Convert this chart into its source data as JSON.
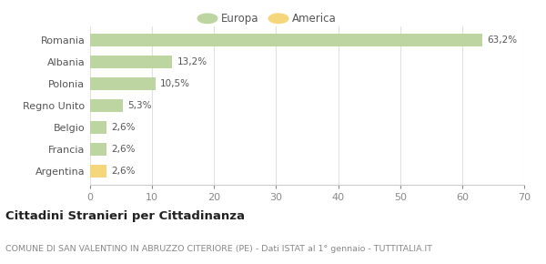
{
  "categories": [
    "Romania",
    "Albania",
    "Polonia",
    "Regno Unito",
    "Belgio",
    "Francia",
    "Argentina"
  ],
  "values": [
    63.2,
    13.2,
    10.5,
    5.3,
    2.6,
    2.6,
    2.6
  ],
  "labels": [
    "63,2%",
    "13,2%",
    "10,5%",
    "5,3%",
    "2,6%",
    "2,6%",
    "2,6%"
  ],
  "colors": [
    "#bdd5a0",
    "#bdd5a0",
    "#bdd5a0",
    "#bdd5a0",
    "#bdd5a0",
    "#bdd5a0",
    "#f5d67a"
  ],
  "europa_color": "#bdd5a0",
  "america_color": "#f5d67a",
  "xlim": [
    0,
    70
  ],
  "xticks": [
    0,
    10,
    20,
    30,
    40,
    50,
    60,
    70
  ],
  "title": "Cittadini Stranieri per Cittadinanza",
  "subtitle": "COMUNE DI SAN VALENTINO IN ABRUZZO CITERIORE (PE) - Dati ISTAT al 1° gennaio - TUTTITALIA.IT",
  "legend_labels": [
    "Europa",
    "America"
  ],
  "background_color": "#ffffff",
  "grid_color": "#e0e0e0"
}
